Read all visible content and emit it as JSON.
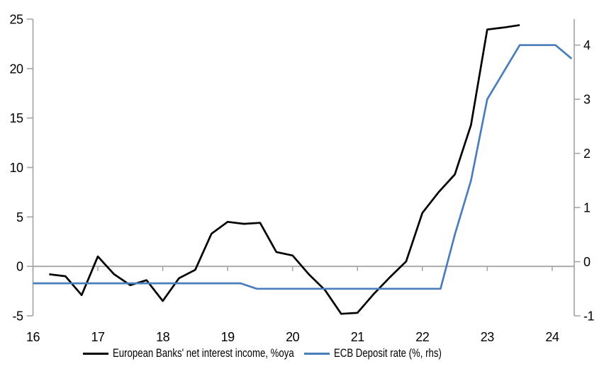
{
  "colors": {
    "background": "#ffffff",
    "axis": "#a6a6a6",
    "zero_line": "#a6a6a6",
    "tick_text": "#000000",
    "nii_line": "#000000",
    "ecb_line": "#4a7ebb"
  },
  "chart_data": {
    "type": "line",
    "title": "",
    "grid": "off",
    "legend_position": "bottom",
    "x_axis": {
      "min": 16,
      "max": 24.34,
      "ticks": [
        16,
        17,
        18,
        19,
        20,
        21,
        22,
        23,
        24
      ],
      "tick_labels": [
        "16",
        "17",
        "18",
        "19",
        "20",
        "21",
        "22",
        "23",
        "24"
      ]
    },
    "left_axis": {
      "min": -5,
      "max": 25,
      "ticks": [
        -5,
        0,
        5,
        10,
        15,
        20,
        25
      ],
      "tick_labels": [
        "-5",
        "0",
        "5",
        "10",
        "15",
        "20",
        "25"
      ]
    },
    "right_axis": {
      "min": -1,
      "max": 4.48,
      "ticks": [
        -1,
        0,
        1,
        2,
        3,
        4
      ],
      "tick_labels": [
        "-1",
        "0",
        "1",
        "2",
        "3",
        "4"
      ]
    },
    "series": [
      {
        "name": "European Banks' net interest income, %oya",
        "axis": "left",
        "color": "#000000",
        "width": 2.7,
        "points": [
          [
            16.25,
            -0.8
          ],
          [
            16.5,
            -1.0
          ],
          [
            16.75,
            -2.9
          ],
          [
            17.0,
            1.0
          ],
          [
            17.25,
            -0.8
          ],
          [
            17.5,
            -1.9
          ],
          [
            17.75,
            -1.4
          ],
          [
            18.0,
            -3.5
          ],
          [
            18.25,
            -1.2
          ],
          [
            18.5,
            -0.35
          ],
          [
            18.75,
            3.3
          ],
          [
            19.0,
            4.5
          ],
          [
            19.25,
            4.3
          ],
          [
            19.5,
            4.4
          ],
          [
            19.75,
            1.45
          ],
          [
            20.0,
            1.1
          ],
          [
            20.25,
            -0.8
          ],
          [
            20.5,
            -2.4
          ],
          [
            20.75,
            -4.8
          ],
          [
            21.0,
            -4.7
          ],
          [
            21.25,
            -2.8
          ],
          [
            21.5,
            -1.1
          ],
          [
            21.75,
            0.5
          ],
          [
            22.0,
            5.4
          ],
          [
            22.25,
            7.5
          ],
          [
            22.5,
            9.3
          ],
          [
            22.75,
            14.3
          ],
          [
            23.0,
            23.95
          ],
          [
            23.25,
            24.15
          ],
          [
            23.5,
            24.4
          ]
        ]
      },
      {
        "name": "ECB Deposit rate (%, rhs)",
        "axis": "right",
        "color": "#4a7ebb",
        "width": 2.7,
        "points": [
          [
            16.0,
            -0.4
          ],
          [
            19.2,
            -0.4
          ],
          [
            19.45,
            -0.5
          ],
          [
            22.28,
            -0.5
          ],
          [
            22.5,
            0.5
          ],
          [
            22.75,
            1.5
          ],
          [
            23.0,
            3.0
          ],
          [
            23.25,
            3.5
          ],
          [
            23.5,
            4.0
          ],
          [
            23.75,
            4.0
          ],
          [
            24.05,
            4.0
          ],
          [
            24.3,
            3.75
          ]
        ]
      }
    ]
  },
  "legend": {
    "item1": "European Banks' net interest income, %oya",
    "item2": "ECB Deposit rate (%, rhs)"
  }
}
